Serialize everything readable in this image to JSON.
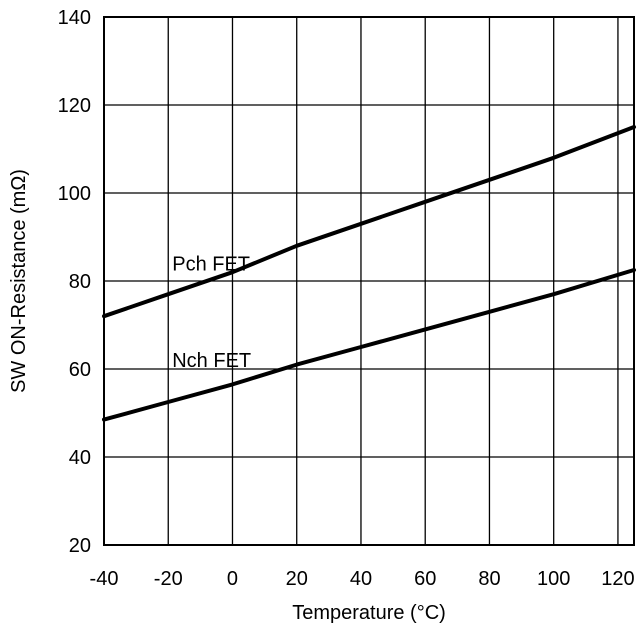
{
  "chart_data": {
    "type": "line",
    "title": "",
    "xlabel": "Temperature (°C)",
    "ylabel": "SW ON-Resistance (mΩ)",
    "xlim": [
      -40,
      125
    ],
    "ylim": [
      20,
      140
    ],
    "xticks": [
      -40,
      -20,
      0,
      20,
      40,
      60,
      80,
      100,
      120
    ],
    "yticks": [
      20,
      40,
      60,
      80,
      100,
      120,
      140
    ],
    "grid": true,
    "series": [
      {
        "name": "Pch FET",
        "x": [
          -40,
          -20,
          0,
          20,
          40,
          60,
          80,
          100,
          125
        ],
        "y": [
          72,
          77,
          82,
          88,
          93,
          98,
          103,
          108,
          115
        ]
      },
      {
        "name": "Nch FET",
        "x": [
          -40,
          -20,
          0,
          20,
          40,
          60,
          80,
          100,
          125
        ],
        "y": [
          48.5,
          52.5,
          56.5,
          61,
          65,
          69,
          73,
          77,
          82.5
        ]
      }
    ]
  }
}
